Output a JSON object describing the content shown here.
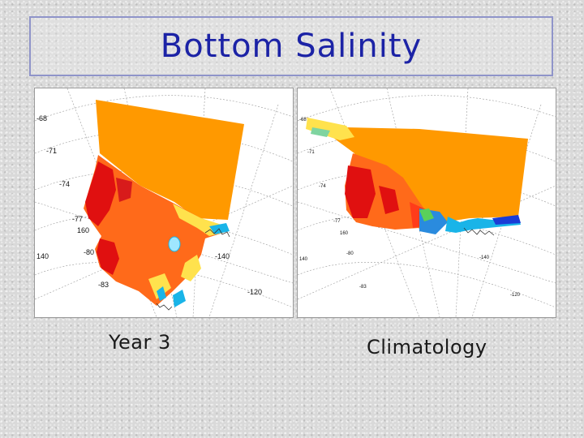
{
  "title": "Bottom Salinity",
  "panels": [
    {
      "caption": "Year 3",
      "lat_labels": [
        "-68",
        "-71",
        "-74",
        "-77",
        "-80",
        "-83"
      ],
      "lon_labels": [
        "160",
        "140",
        "-140",
        "-120"
      ]
    },
    {
      "caption": "Climatology",
      "lat_labels": [
        "-68",
        "-71",
        "-74",
        "-77",
        "-80",
        "-83"
      ],
      "lon_labels": [
        "160",
        "140",
        "-140",
        "-120"
      ]
    }
  ],
  "colors": {
    "title": "#1c23a6",
    "open_ocean": "#ff9900",
    "high_salinity": "#e01010",
    "mid_salinity": "#ff6a1a",
    "low_salinity": "#ffe24d",
    "fresh_water": "#19b4e8"
  }
}
